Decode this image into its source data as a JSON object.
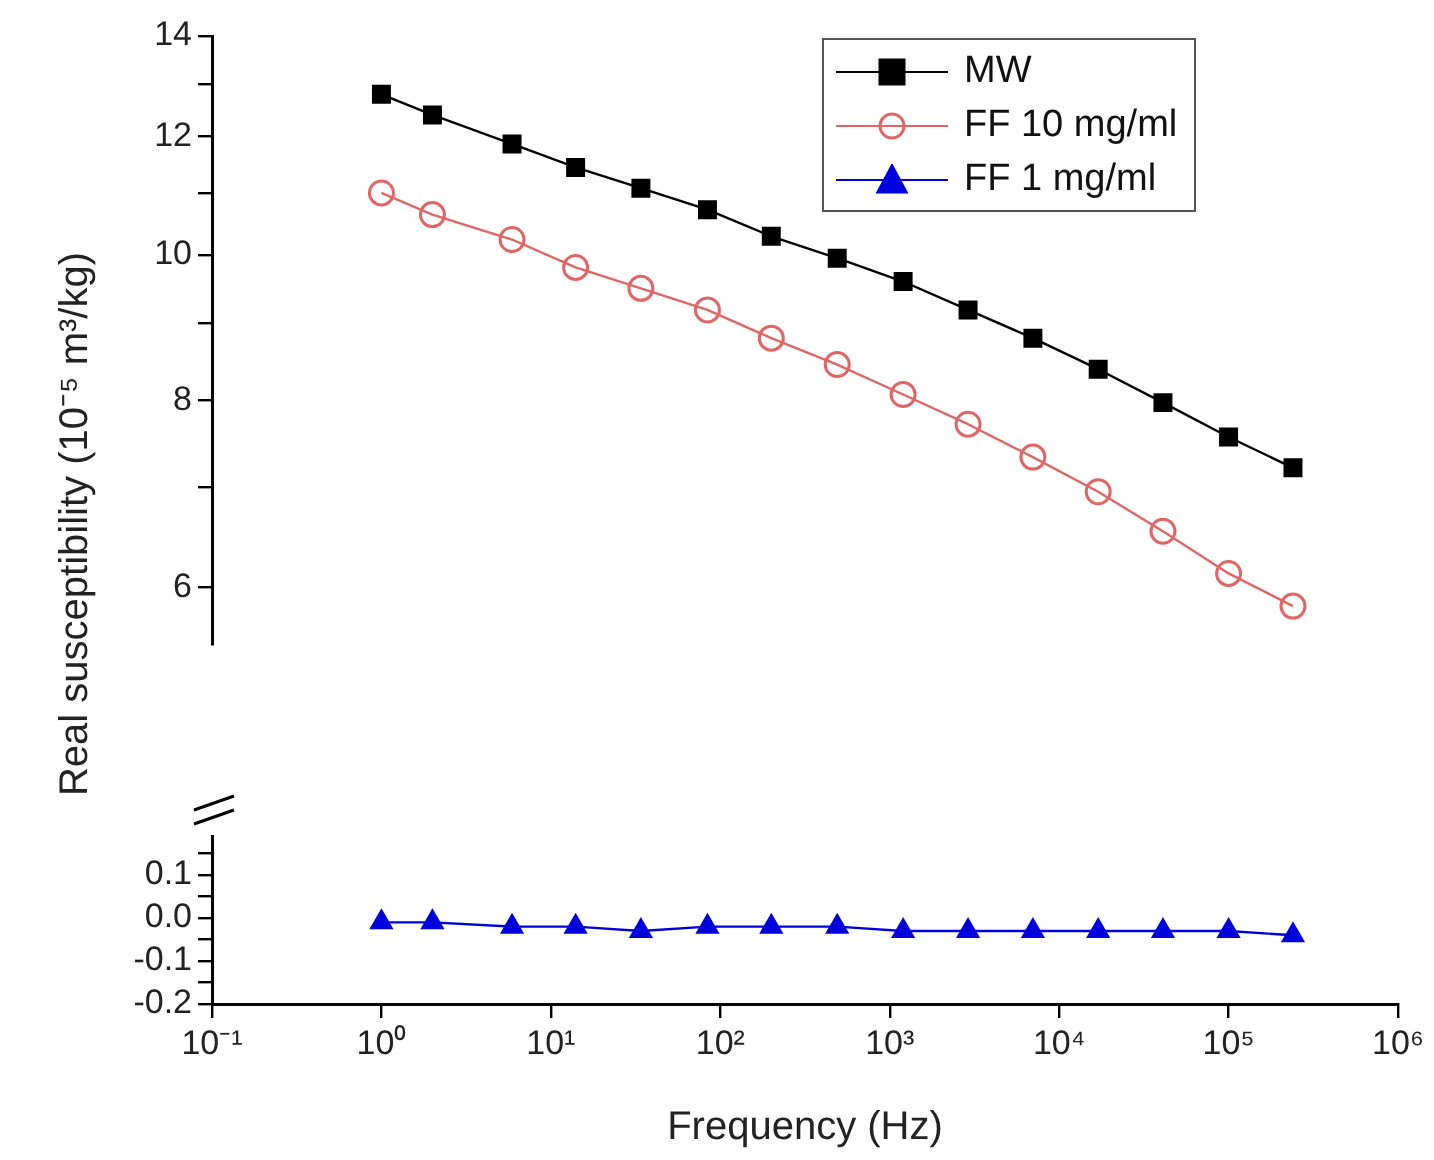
{
  "chart_data": [
    {
      "type": "line",
      "ylabel": "Real susceptibility (10⁻⁵ m³/kg)",
      "log": "xy",
      "grid": false,
      "legend": "top right",
      "tick_labels": "y",
      "x": [
        1,
        2,
        5.9,
        14,
        34,
        84,
        200,
        490,
        1200,
        2900,
        7000,
        17000,
        41000,
        100000,
        240000
      ],
      "xlim": [
        0.1,
        1000000
      ],
      "ylim": [
        5.5,
        14
      ],
      "yticks": [
        6,
        {
          "value": 7,
          "label": null
        },
        8,
        {
          "value": 9,
          "label": null
        },
        10,
        {
          "value": 11,
          "label": null
        },
        12,
        {
          "value": 13,
          "label": null
        },
        14
      ],
      "series": [
        {
          "name": "MW",
          "color": "#000000",
          "marker": "square",
          "values": [
            12.8,
            12.4,
            11.86,
            11.44,
            11.08,
            10.72,
            10.29,
            9.95,
            9.6,
            9.19,
            8.8,
            8.39,
            7.97,
            7.56,
            7.21
          ]
        },
        {
          "name": "FF 10 mg/ml",
          "color": "#e06666",
          "marker": "circle",
          "values": [
            11.0,
            10.64,
            10.24,
            9.81,
            9.5,
            9.19,
            8.8,
            8.45,
            8.07,
            7.71,
            7.33,
            6.95,
            6.54,
            6.13,
            5.83
          ]
        }
      ]
    },
    {
      "type": "line",
      "xlabel": "Frequency (Hz)",
      "log": "x",
      "grid": false,
      "legend": "top right",
      "x": [
        1,
        2,
        5.9,
        14,
        34,
        84,
        200,
        490,
        1200,
        2900,
        7000,
        17000,
        41000,
        100000,
        240000
      ],
      "xlim": [
        0.1,
        1000000
      ],
      "xticks": [
        {
          "value": 0.1,
          "label": "10⁻¹"
        },
        {
          "value": 1,
          "label": "10⁰"
        },
        {
          "value": 10,
          "label": "10¹"
        },
        {
          "value": 100,
          "label": "10²"
        },
        {
          "value": 1000,
          "label": "10³"
        },
        {
          "value": 10000,
          "label": "10⁴"
        },
        {
          "value": 100000,
          "label": "10⁵"
        },
        {
          "value": 1000000,
          "label": "10⁶"
        }
      ],
      "ylim": [
        -0.2,
        0.19
      ],
      "yticks": [
        -0.2,
        {
          "value": -0.15,
          "label": null
        },
        -0.1,
        {
          "value": -0.05,
          "label": null
        },
        {
          "value": 0,
          "label": "0.0"
        },
        {
          "value": 0.05,
          "label": null
        },
        0.1,
        {
          "value": 0.15,
          "label": null
        }
      ],
      "series": [
        {
          "name": "FF 1 mg/ml",
          "color": "#0000dd",
          "marker": "triangle",
          "values": [
            -0.01,
            -0.01,
            -0.02,
            -0.02,
            -0.03,
            -0.02,
            -0.02,
            -0.02,
            -0.03,
            -0.03,
            -0.03,
            -0.03,
            -0.03,
            -0.03,
            -0.04
          ]
        }
      ]
    }
  ]
}
